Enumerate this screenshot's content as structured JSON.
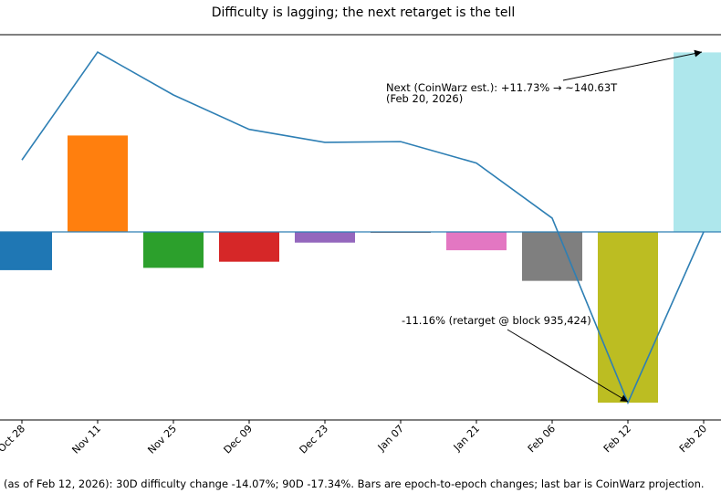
{
  "chart_data": {
    "type": "bar",
    "title": "Difficulty is lagging; the next retarget is the tell",
    "categories": [
      "Oct 28",
      "Nov 11",
      "Nov 25",
      "Dec 09",
      "Dec 23",
      "Jan 07",
      "Jan 21",
      "Feb 06",
      "Feb 12",
      "Feb 20"
    ],
    "bar_values": [
      -2.5,
      6.3,
      -2.35,
      -1.95,
      -0.7,
      -0.05,
      -1.2,
      -3.2,
      -11.16,
      11.73
    ],
    "bar_colors": [
      "#1f77b4",
      "#ff7f0e",
      "#2ca02c",
      "#d62728",
      "#9467bd",
      "#8c564b",
      "#e377c2",
      "#7f7f7f",
      "#bcbd22",
      "#aee7ec"
    ],
    "line_values": [
      4.7,
      11.75,
      8.95,
      6.7,
      5.85,
      5.9,
      4.5,
      0.9,
      -11.16,
      0
    ],
    "line_color": "#2e7fb4",
    "ylim": [
      -12.2,
      12.9
    ],
    "annotations": [
      {
        "text_line1": "Next (CoinWarz est.): +11.73% → ~140.63T",
        "text_line2": "(Feb 20, 2026)",
        "target_category": "Feb 20",
        "target_value": 11.73
      },
      {
        "text_line1": "-11.16% (retarget @ block 935,424)",
        "target_category": "Feb 12",
        "target_value": -11.16
      }
    ],
    "footnote": "(as of Feb 12, 2026): 30D difficulty change -14.07%; 90D -17.34%. Bars are epoch-to-epoch changes; last bar is CoinWarz projection.",
    "grid": false
  }
}
